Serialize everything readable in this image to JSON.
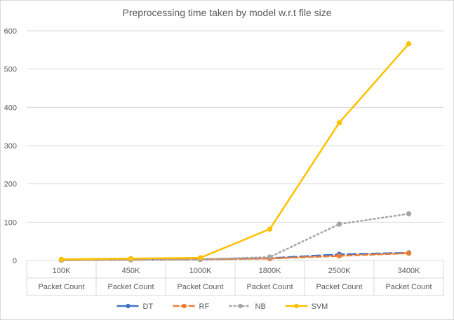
{
  "chart_data": {
    "type": "line",
    "title": "Preprocessing time taken by model w.r.t file size",
    "categories": [
      "100K",
      "450K",
      "1000K",
      "1800K",
      "2500K",
      "3400K"
    ],
    "category_group_label": "Packet Count",
    "ylim": [
      0,
      600
    ],
    "yticks": [
      0,
      100,
      200,
      300,
      400,
      500,
      600
    ],
    "grid": true,
    "legend_position": "bottom",
    "series": [
      {
        "name": "DT",
        "values": [
          1,
          2,
          3,
          6,
          16,
          20
        ],
        "color": "#4472c4",
        "dash": "long-dash"
      },
      {
        "name": "RF",
        "values": [
          1,
          2,
          3,
          5,
          12,
          19
        ],
        "color": "#ed7d31",
        "dash": "dash"
      },
      {
        "name": "NB",
        "values": [
          1,
          2,
          3,
          9,
          95,
          122
        ],
        "color": "#a5a5a5",
        "dash": "dot"
      },
      {
        "name": "SVM",
        "values": [
          3,
          5,
          7,
          82,
          360,
          566
        ],
        "color": "#ffc000",
        "dash": "solid"
      }
    ]
  }
}
